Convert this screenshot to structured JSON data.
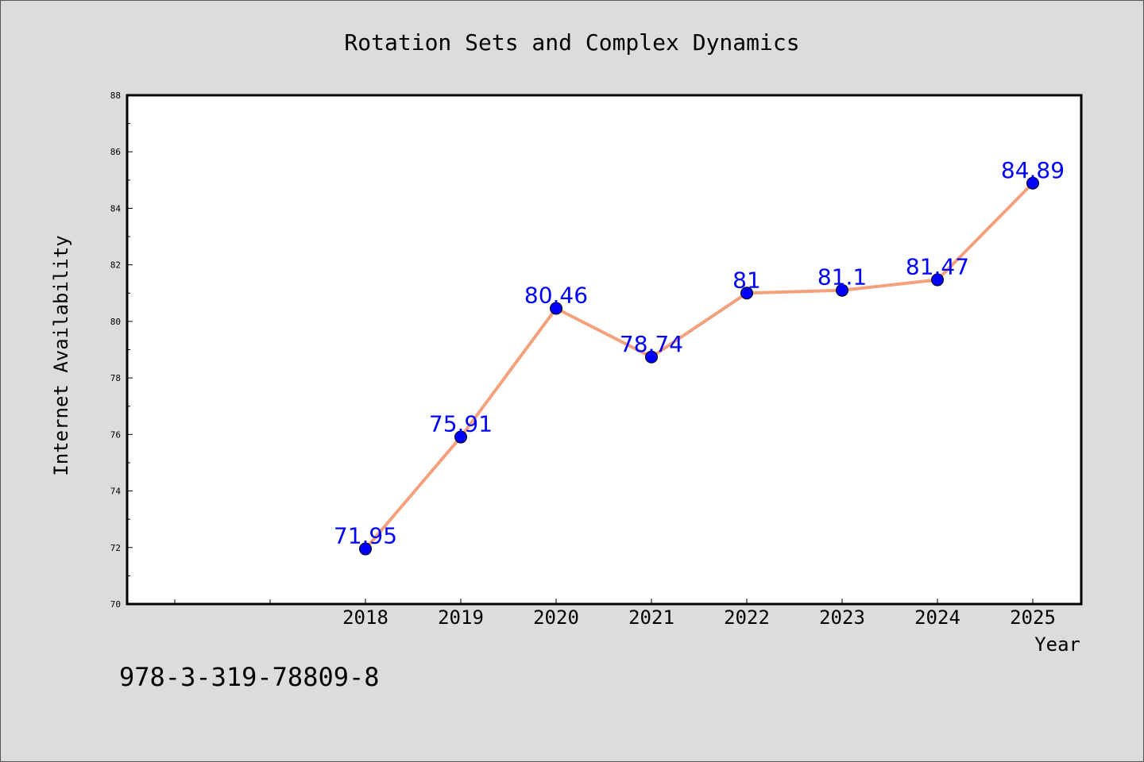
{
  "chart_data": {
    "type": "line",
    "title": "Rotation Sets and Complex Dynamics",
    "xlabel": "Year",
    "ylabel": "Internet Availability",
    "categories": [
      "2018",
      "2019",
      "2020",
      "2021",
      "2022",
      "2023",
      "2024",
      "2025"
    ],
    "series": [
      {
        "values": [
          71.95,
          75.91,
          80.46,
          78.74,
          81,
          81.1,
          81.47,
          84.89
        ],
        "labels": [
          "71.95",
          "75.91",
          "80.46",
          "78.74",
          "81",
          "81.1",
          "81.47",
          "84.89"
        ]
      }
    ],
    "ylim": [
      70,
      88
    ],
    "yticks": [
      "70",
      "72",
      "74",
      "76",
      "78",
      "80",
      "82",
      "84",
      "86",
      "88"
    ],
    "grid": false,
    "legend": "none",
    "colors": {
      "line": "#f4a07c",
      "marker": "#0000ff",
      "data_label": "#0000ff",
      "plot_background": "#ffffff",
      "figure_background": "#dcdcdc"
    }
  },
  "footer": {
    "isbn": "978-3-319-78809-8"
  }
}
